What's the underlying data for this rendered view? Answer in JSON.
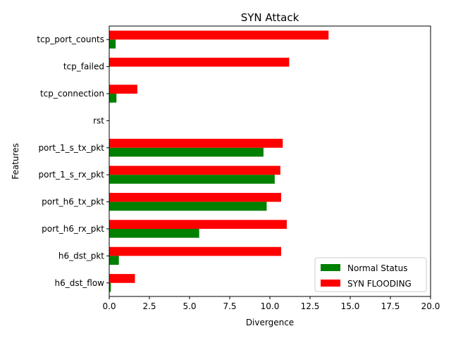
{
  "chart_data": {
    "type": "bar",
    "orientation": "horizontal",
    "title": "SYN Attack",
    "xlabel": "Divergence",
    "ylabel": "Features",
    "xlim": [
      0,
      20
    ],
    "xticks": [
      "0.0",
      "2.5",
      "5.0",
      "7.5",
      "10.0",
      "12.5",
      "15.0",
      "17.5",
      "20.0"
    ],
    "categories": [
      "h6_dst_flow",
      "h6_dst_pkt",
      "port_h6_rx_pkt",
      "port_h6_tx_pkt",
      "port_1_s_rx_pkt",
      "port_1_s_tx_pkt",
      "rst",
      "tcp_connection",
      "tcp_failed",
      "tcp_port_counts"
    ],
    "series": [
      {
        "name": "Normal Status",
        "color": "#008000",
        "values": [
          0.1,
          0.6,
          5.6,
          9.8,
          10.3,
          9.6,
          0.0,
          0.45,
          0.0,
          0.4
        ]
      },
      {
        "name": "SYN FLOODING",
        "color": "#ff0000",
        "values": [
          1.6,
          10.7,
          11.05,
          10.7,
          10.65,
          10.8,
          0.0,
          1.75,
          11.2,
          13.65
        ]
      }
    ],
    "legend": "lower-right",
    "grid": false
  }
}
